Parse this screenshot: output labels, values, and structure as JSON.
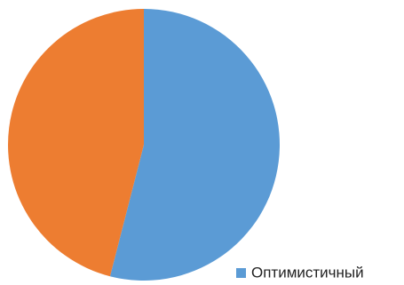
{
  "chart_data": {
    "type": "pie",
    "categories": [
      "Оптимистичный",
      null
    ],
    "values": [
      54,
      46
    ],
    "colors": [
      "#5B9BD5",
      "#ED7D31"
    ],
    "legend": "bottom-right"
  }
}
